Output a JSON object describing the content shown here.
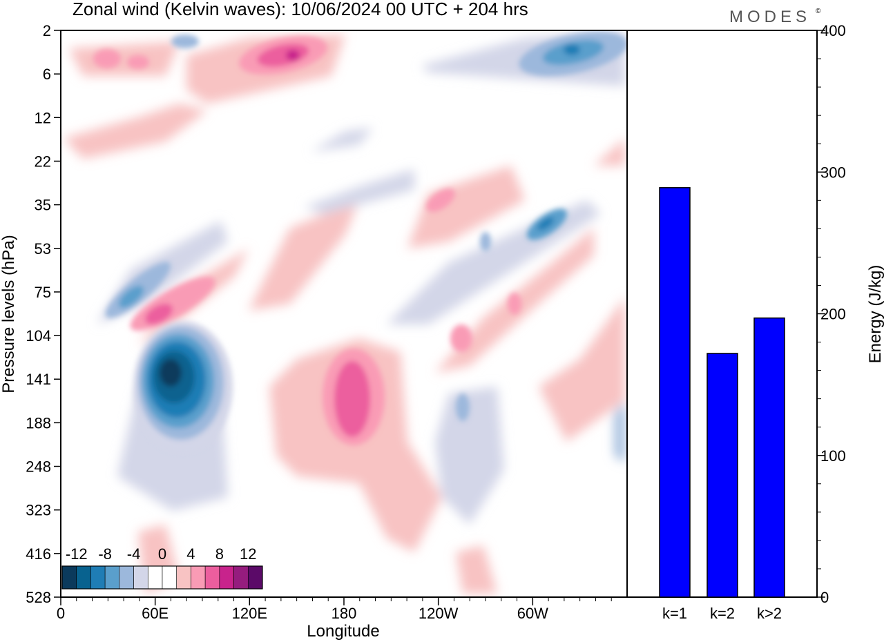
{
  "title": "Zonal wind (Kelvin waves):  10/06/2024  00 UTC  + 204 hrs",
  "logo": "MODES",
  "logo_mark": "©",
  "chart_data": [
    {
      "type": "heatmap",
      "xlabel": "Longitude",
      "ylabel": "Pressure levels (hPa)",
      "x_ticks": [
        "0",
        "60E",
        "120E",
        "180",
        "120W",
        "60W"
      ],
      "y_ticks": [
        "2",
        "6",
        "12",
        "22",
        "35",
        "53",
        "75",
        "104",
        "141",
        "188",
        "248",
        "323",
        "416",
        "528"
      ],
      "colorbar": {
        "labels": [
          "-12",
          "-8",
          "-4",
          "0",
          "4",
          "8",
          "12"
        ],
        "levels": [
          -14,
          -12,
          -10,
          -8,
          -6,
          -4,
          -2,
          0,
          2,
          4,
          6,
          8,
          10,
          12,
          14
        ],
        "colors": [
          "#0b3a5c",
          "#08628f",
          "#1f7db5",
          "#5a9fcc",
          "#9cb8dc",
          "#d3d6e8",
          "#ffffff",
          "#ffffff",
          "#f8c3c3",
          "#f99bb5",
          "#ec5e9e",
          "#c8238c",
          "#951c7e",
          "#5b0a68"
        ]
      },
      "features": [
        {
          "lon": 70,
          "hPa": 141,
          "value": -14
        },
        {
          "lon": 55,
          "hPa": 85,
          "value": -6
        },
        {
          "lon": 62,
          "hPa": 95,
          "value": 8
        },
        {
          "lon": 185,
          "hPa": 160,
          "value": 8
        },
        {
          "lon": 180,
          "hPa": 300,
          "value": 2
        },
        {
          "lon": 150,
          "hPa": 4,
          "value": 10
        },
        {
          "lon": 320,
          "hPa": 4,
          "value": -8
        },
        {
          "lon": 305,
          "hPa": 45,
          "value": -8
        },
        {
          "lon": 240,
          "hPa": 40,
          "value": 6
        },
        {
          "lon": 20,
          "hPa": 5,
          "value": 4
        },
        {
          "lon": 250,
          "hPa": 170,
          "value": -4
        }
      ]
    },
    {
      "type": "bar",
      "categories": [
        "k=1",
        "k=2",
        "k>2"
      ],
      "values": [
        289,
        172,
        197
      ],
      "ylabel": "Energy (J/kg)",
      "ylim": [
        0,
        400
      ],
      "y_ticks": [
        0,
        100,
        200,
        300,
        400
      ],
      "bar_color": "#0000ff"
    }
  ]
}
